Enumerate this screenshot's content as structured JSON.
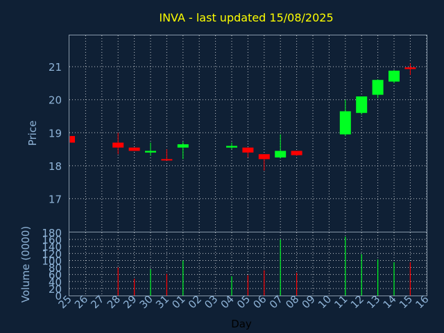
{
  "chart_data": {
    "type": "candlestick",
    "title": "INVA - last updated 15/08/2025",
    "xlabel": "Day",
    "x_ticks": [
      "25",
      "26",
      "27",
      "28",
      "29",
      "30",
      "31",
      "01",
      "02",
      "03",
      "04",
      "05",
      "06",
      "07",
      "08",
      "09",
      "10",
      "11",
      "12",
      "13",
      "14",
      "15",
      "16"
    ],
    "price_panel": {
      "ylabel": "Price",
      "ylim": [
        16.0,
        21.95
      ],
      "y_ticks": [
        "17",
        "18",
        "19",
        "20",
        "21"
      ],
      "candles": [
        {
          "day": "25",
          "open": 18.9,
          "high": 18.9,
          "low": 18.7,
          "close": 18.7
        },
        {
          "day": "28",
          "open": 18.7,
          "high": 19.0,
          "low": 18.35,
          "close": 18.55
        },
        {
          "day": "29",
          "open": 18.55,
          "high": 18.55,
          "low": 18.45,
          "close": 18.45
        },
        {
          "day": "30",
          "open": 18.4,
          "high": 18.7,
          "low": 18.3,
          "close": 18.45
        },
        {
          "day": "31",
          "open": 18.2,
          "high": 18.5,
          "low": 18.15,
          "close": 18.18
        },
        {
          "day": "01",
          "open": 18.55,
          "high": 18.72,
          "low": 18.2,
          "close": 18.65
        },
        {
          "day": "04",
          "open": 18.55,
          "high": 18.7,
          "low": 18.5,
          "close": 18.6
        },
        {
          "day": "05",
          "open": 18.55,
          "high": 18.55,
          "low": 18.25,
          "close": 18.4
        },
        {
          "day": "06",
          "open": 18.35,
          "high": 18.35,
          "low": 17.85,
          "close": 18.2
        },
        {
          "day": "07",
          "open": 18.25,
          "high": 18.95,
          "low": 18.22,
          "close": 18.45
        },
        {
          "day": "08",
          "open": 18.45,
          "high": 18.45,
          "low": 18.3,
          "close": 18.32
        },
        {
          "day": "11",
          "open": 18.95,
          "high": 20.0,
          "low": 18.9,
          "close": 19.65
        },
        {
          "day": "12",
          "open": 19.6,
          "high": 20.1,
          "low": 19.55,
          "close": 20.1
        },
        {
          "day": "13",
          "open": 20.15,
          "high": 20.62,
          "low": 20.05,
          "close": 20.6
        },
        {
          "day": "14",
          "open": 20.55,
          "high": 20.9,
          "low": 20.5,
          "close": 20.88
        },
        {
          "day": "15",
          "open": 20.98,
          "high": 21.1,
          "low": 20.75,
          "close": 20.93
        }
      ]
    },
    "volume_panel": {
      "ylabel": "Volume (0000)",
      "ylim": [
        0,
        180
      ],
      "y_ticks": [
        "0",
        "20",
        "40",
        "60",
        "80",
        "100",
        "120",
        "140",
        "160",
        "180"
      ],
      "bars": [
        {
          "day": "28",
          "value": 80,
          "direction": "down"
        },
        {
          "day": "29",
          "value": 48,
          "direction": "down"
        },
        {
          "day": "30",
          "value": 75,
          "direction": "up"
        },
        {
          "day": "31",
          "value": 62,
          "direction": "down"
        },
        {
          "day": "01",
          "value": 100,
          "direction": "up"
        },
        {
          "day": "04",
          "value": 55,
          "direction": "up"
        },
        {
          "day": "05",
          "value": 58,
          "direction": "down"
        },
        {
          "day": "06",
          "value": 72,
          "direction": "down"
        },
        {
          "day": "07",
          "value": 160,
          "direction": "up"
        },
        {
          "day": "08",
          "value": 65,
          "direction": "down"
        },
        {
          "day": "11",
          "value": 168,
          "direction": "up"
        },
        {
          "day": "12",
          "value": 118,
          "direction": "up"
        },
        {
          "day": "13",
          "value": 103,
          "direction": "up"
        },
        {
          "day": "14",
          "value": 95,
          "direction": "up"
        },
        {
          "day": "15",
          "value": 95,
          "direction": "down"
        }
      ]
    },
    "grid": true,
    "colors": {
      "background": "#0f2035",
      "title": "#ffff00",
      "axis_text": "#8fb4d8",
      "up": "#00ff22",
      "down": "#ff0000",
      "frame": "#8899aa",
      "grid": "#ffffff"
    }
  }
}
